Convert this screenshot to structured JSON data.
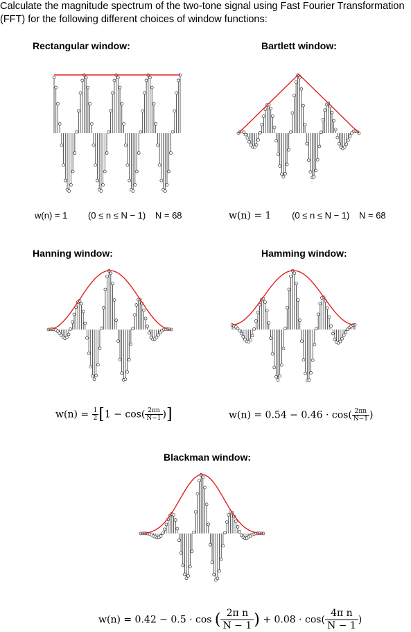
{
  "intro": "Calculate the magnitude spectrum of the two-tone signal using Fast Fourier Transformation (FFT) for the following different choices of window functions:",
  "windows": {
    "rectangular": {
      "title": "Rectangular window:",
      "formula": {
        "lhs": "w(n) = 1",
        "range": "(0 ≤ n ≤ N − 1)",
        "length": "N = 68"
      }
    },
    "bartlett": {
      "title": "Bartlett window:",
      "formula": {
        "lhs": "w(n) = 1",
        "range": "(0 ≤ n ≤ N − 1)",
        "length": "N = 68"
      }
    },
    "hanning": {
      "title": "Hanning window:",
      "formula": {
        "lhs": "w(n) = ",
        "half_num": "1",
        "half_den": "2",
        "body": "1 − cos(",
        "frac_num": "2πn",
        "frac_den": "N−1",
        "close": ")"
      }
    },
    "hamming": {
      "title": "Hamming window:",
      "formula": {
        "lhs": "w(n) = 0.54 − 0.46 · cos(",
        "frac_num": "2πn",
        "frac_den": "N−1",
        "close": ")"
      }
    },
    "blackman": {
      "title": "Blackman window:",
      "formula": {
        "lhs": "w(n) = 0.42 − 0.5 · cos",
        "frac1_num": "2π n",
        "frac1_den": "N − 1",
        "mid": " + 0.08 · cos(",
        "frac2_num": "4π n",
        "frac2_den": "N − 1",
        "close": ")"
      }
    }
  },
  "style": {
    "envelope_color": "#e02020",
    "stem_color": "#333333"
  }
}
